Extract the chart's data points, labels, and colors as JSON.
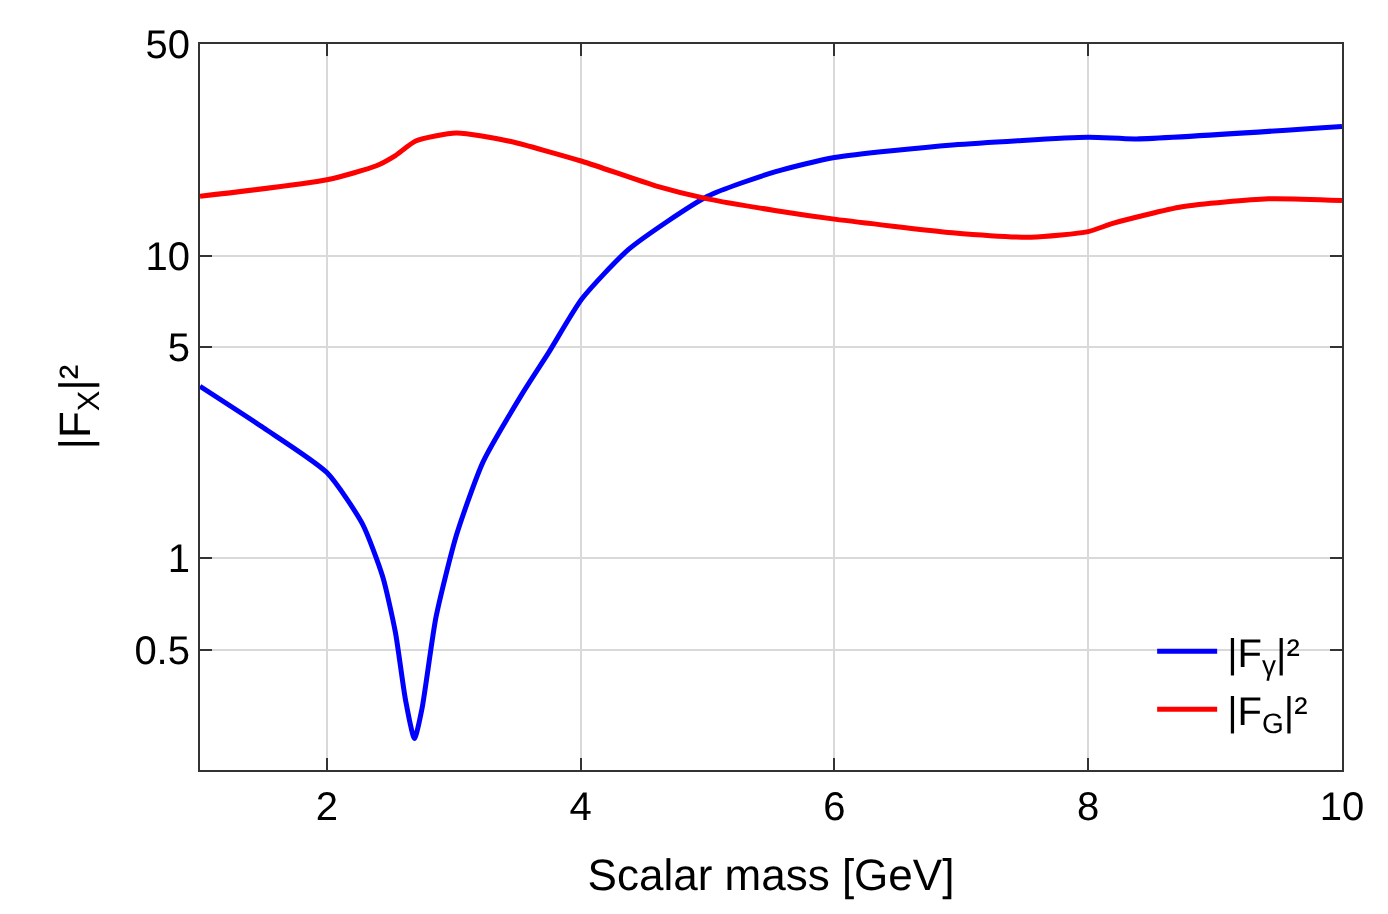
{
  "chart_data": {
    "type": "line",
    "xlabel": "Scalar mass [GeV]",
    "ylabel": "|F$_{X}$|²",
    "log": "y",
    "xlim": [
      1,
      10
    ],
    "xticks": [
      2,
      4,
      6,
      8,
      10
    ],
    "ylim": [
      0.2,
      50
    ],
    "yticks": [
      0.5,
      1,
      5,
      10,
      50
    ],
    "grid": true,
    "legend": "bottom right",
    "line_style": "solid",
    "marker": "none",
    "series": [
      {
        "name": "|F$_{γ}$|²",
        "color": "#0000ff",
        "x": [
          1,
          1.5,
          2.0,
          2.28,
          2.44,
          2.54,
          2.62,
          2.69,
          2.75,
          2.86,
          3.02,
          3.23,
          3.54,
          3.75,
          4.01,
          4.38,
          5.0,
          5.53,
          6,
          6.93,
          8,
          8.38,
          10
        ],
        "values": [
          3.7,
          2.7,
          1.92,
          1.3,
          0.87,
          0.57,
          0.34,
          0.254,
          0.32,
          0.64,
          1.19,
          2.08,
          3.5,
          4.8,
          7.2,
          10.5,
          15.7,
          18.9,
          21.1,
          23.2,
          24.6,
          24.3,
          26.7
        ]
      },
      {
        "name": "|F$_{G}$|²",
        "color": "#ff0000",
        "x": [
          1,
          2,
          2.39,
          2.54,
          2.7,
          3.02,
          3.43,
          4.01,
          4.59,
          5.0,
          5.53,
          6,
          6.93,
          7.55,
          8,
          8.2,
          8.74,
          9.42,
          10
        ],
        "values": [
          15.7,
          17.8,
          19.8,
          21.4,
          23.9,
          25.4,
          23.9,
          20.5,
          17.0,
          15.4,
          14.1,
          13.2,
          11.9,
          11.5,
          12.0,
          12.8,
          14.5,
          15.4,
          15.2
        ]
      }
    ]
  }
}
